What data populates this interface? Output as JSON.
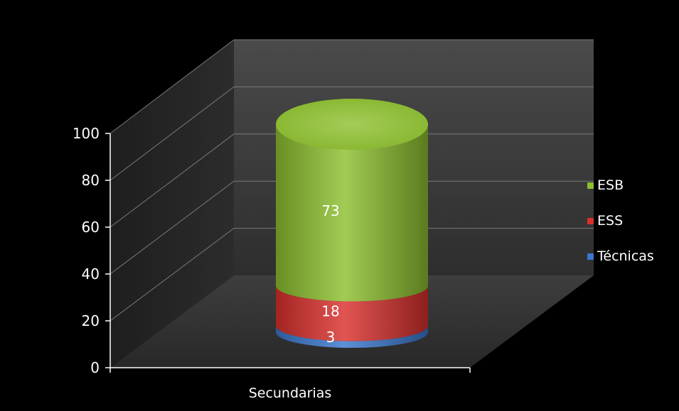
{
  "chart_data": {
    "type": "bar",
    "subtype": "stacked-3d-cylinder",
    "title": "",
    "xlabel": "",
    "ylabel": "",
    "categories": [
      "Secundarias"
    ],
    "series": [
      {
        "name": "Técnicas",
        "values": [
          3
        ],
        "color": "#3a78cf"
      },
      {
        "name": "ESS",
        "values": [
          18
        ],
        "color": "#d9302c"
      },
      {
        "name": "ESB",
        "values": [
          73
        ],
        "color": "#8cbf2e"
      }
    ],
    "yticks": [
      "0",
      "20",
      "40",
      "60",
      "80",
      "100"
    ],
    "ylim": [
      0,
      100
    ],
    "grid": true,
    "legend": "right",
    "background": "#000000"
  }
}
